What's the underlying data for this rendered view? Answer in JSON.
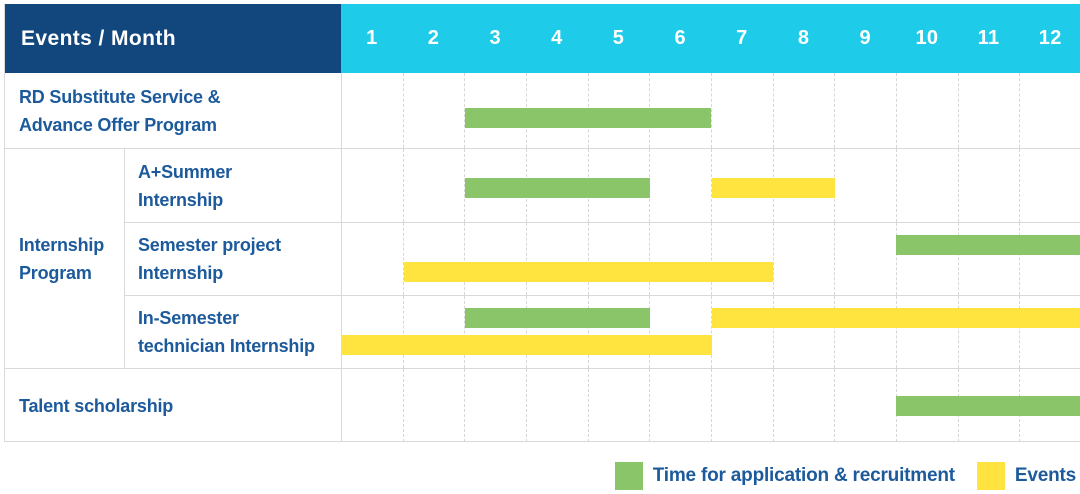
{
  "header": {
    "title": "Events / Month",
    "months": [
      "1",
      "2",
      "3",
      "4",
      "5",
      "6",
      "7",
      "8",
      "9",
      "10",
      "11",
      "12"
    ]
  },
  "legend": [
    {
      "key": "application",
      "label": "Time for application & recruitment",
      "color": "#8BC56A"
    },
    {
      "key": "event",
      "label": "Events",
      "color": "#FFE33E"
    }
  ],
  "colors": {
    "header_bg": "#12477E",
    "months_bg": "#1ECBE8",
    "application_bar": "#8BC56A",
    "event_bar": "#FFE33E",
    "label_text": "#1C5A9C",
    "header_text": "#FFFFFF",
    "grid_line": "#D9D9D9"
  },
  "chart_data": {
    "type": "bar",
    "subtype": "gantt-schedule",
    "title": "Events / Month",
    "xlabel": "Month",
    "x_ticks": [
      1,
      2,
      3,
      4,
      5,
      6,
      7,
      8,
      9,
      10,
      11,
      12
    ],
    "x_range": [
      1,
      12
    ],
    "grid": true,
    "legend_position": "bottom-right",
    "series_legend": [
      "Time for application & recruitment",
      "Events"
    ],
    "group": {
      "label": "Internship Program",
      "label_lines": [
        "Internship",
        "Program"
      ],
      "row_indexes": [
        1,
        2,
        3
      ]
    },
    "rows": [
      {
        "label": "RD Substitute Service & Advance Offer Program",
        "label_lines": [
          "RD Substitute Service &",
          "Advance Offer Program"
        ],
        "group": null,
        "bars": [
          {
            "type": "application",
            "start_month": 3,
            "end_month": 6,
            "line": 1
          }
        ]
      },
      {
        "label": "A+Summer Internship",
        "label_lines": [
          "A+Summer",
          "Internship"
        ],
        "group": "Internship Program",
        "bars": [
          {
            "type": "application",
            "start_month": 3,
            "end_month": 5,
            "line": 1
          },
          {
            "type": "event",
            "start_month": 7,
            "end_month": 8,
            "line": 1
          }
        ]
      },
      {
        "label": "Semester project Internship",
        "label_lines": [
          "Semester project",
          "Internship"
        ],
        "group": "Internship Program",
        "bars": [
          {
            "type": "application",
            "start_month": 10,
            "end_month": 12,
            "line": 1
          },
          {
            "type": "event",
            "start_month": 2,
            "end_month": 7,
            "line": 2
          }
        ]
      },
      {
        "label": "In-Semester technician Internship",
        "label_lines": [
          "In-Semester",
          "technician Internship"
        ],
        "group": "Internship Program",
        "bars": [
          {
            "type": "application",
            "start_month": 3,
            "end_month": 5,
            "line": 1
          },
          {
            "type": "event",
            "start_month": 7,
            "end_month": 12,
            "line": 1
          },
          {
            "type": "event",
            "start_month": 1,
            "end_month": 6,
            "line": 2
          }
        ]
      },
      {
        "label": "Talent scholarship",
        "label_lines": [
          "Talent scholarship"
        ],
        "group": null,
        "bars": [
          {
            "type": "application",
            "start_month": 10,
            "end_month": 12,
            "line": 1
          }
        ]
      }
    ]
  }
}
